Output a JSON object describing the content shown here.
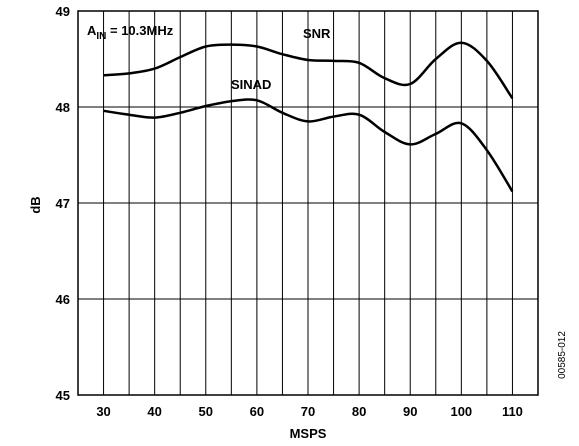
{
  "chart_data": {
    "type": "line",
    "xlabel": "MSPS",
    "ylabel": "dB",
    "xlim": [
      25,
      115
    ],
    "ylim": [
      45,
      49
    ],
    "x_ticks": [
      "30",
      "40",
      "50",
      "60",
      "70",
      "80",
      "90",
      "100",
      "110"
    ],
    "y_ticks": [
      "45",
      "46",
      "47",
      "48",
      "49"
    ],
    "x_ticks_values": [
      30,
      40,
      50,
      60,
      70,
      80,
      90,
      100,
      110
    ],
    "y_ticks_values": [
      45,
      46,
      47,
      48,
      49
    ],
    "grid": true,
    "annotation": {
      "prefix": "A",
      "subscript": "IN",
      "rest": " = 10.3MHz"
    },
    "figure_id": "00585-012",
    "series": [
      {
        "name": "SNR",
        "x": [
          30,
          35,
          40,
          45,
          50,
          55,
          60,
          65,
          70,
          75,
          80,
          85,
          90,
          95,
          100,
          105,
          110
        ],
        "y": [
          48.33,
          48.35,
          48.4,
          48.52,
          48.63,
          48.65,
          48.63,
          48.55,
          48.49,
          48.48,
          48.46,
          48.3,
          48.24,
          48.5,
          48.67,
          48.48,
          48.09
        ]
      },
      {
        "name": "SINAD",
        "x": [
          30,
          35,
          40,
          45,
          50,
          55,
          60,
          65,
          70,
          75,
          80,
          85,
          90,
          95,
          100,
          105,
          110
        ],
        "y": [
          47.96,
          47.92,
          47.89,
          47.94,
          48.01,
          48.06,
          48.07,
          47.94,
          47.85,
          47.9,
          47.92,
          47.74,
          47.61,
          47.72,
          47.83,
          47.55,
          47.12
        ]
      }
    ]
  }
}
